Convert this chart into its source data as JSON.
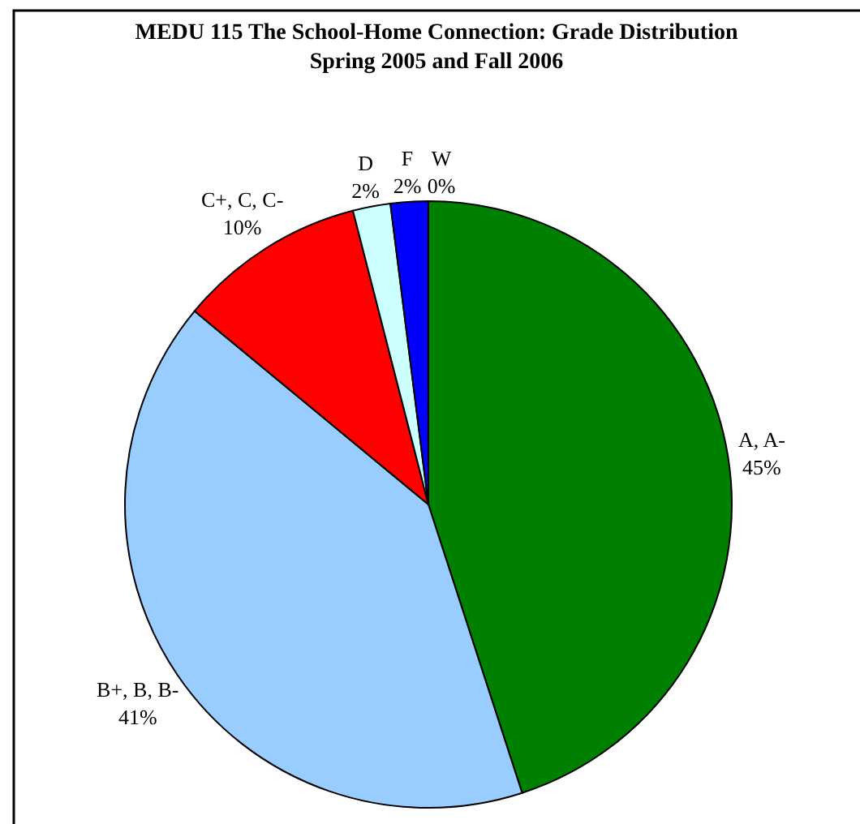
{
  "chart_data": {
    "type": "pie",
    "title": "MEDU 115 The School-Home Connection: Grade Distribution",
    "subtitle": "Spring 2005 and Fall 2006",
    "categories": [
      "A, A-",
      "B+, B, B-",
      "C+, C, C-",
      "D",
      "F",
      "W"
    ],
    "values": [
      45,
      41,
      10,
      2,
      2,
      0
    ],
    "colors": [
      "#008000",
      "#99ccff",
      "#ff0000",
      "#ccffff",
      "#0000ff",
      null
    ],
    "value_labels": [
      "45%",
      "41%",
      "10%",
      "2%",
      "2%",
      "0%"
    ]
  }
}
